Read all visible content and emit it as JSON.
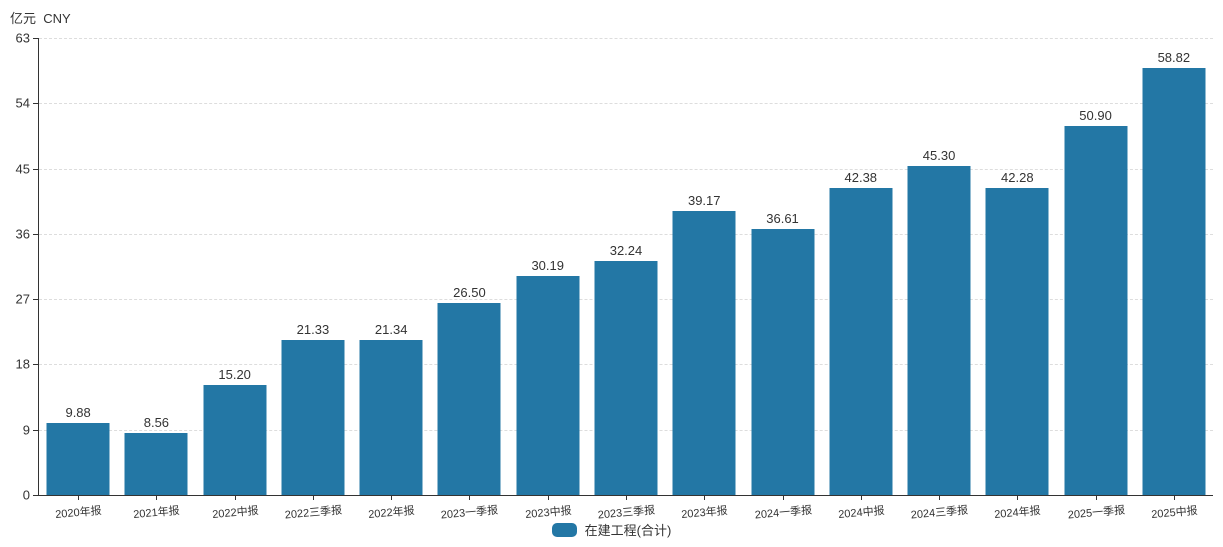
{
  "page": {
    "background": "#ffffff"
  },
  "chart_data": {
    "type": "bar",
    "title": "",
    "unit_label": "亿元  CNY",
    "xlabel": "",
    "ylabel": "亿元 CNY",
    "categories": [
      "2020年报",
      "2021年报",
      "2022中报",
      "2022三季报",
      "2022年报",
      "2023一季报",
      "2023中报",
      "2023三季报",
      "2023年报",
      "2024一季报",
      "2024中报",
      "2024三季报",
      "2024年报",
      "2025一季报",
      "2025中报"
    ],
    "series": [
      {
        "name": "在建工程(合计)",
        "values": [
          9.88,
          8.56,
          15.2,
          21.33,
          21.34,
          26.5,
          30.19,
          32.24,
          39.17,
          36.61,
          42.38,
          45.3,
          42.28,
          50.9,
          58.82
        ]
      }
    ],
    "value_labels": [
      "9.88",
      "8.56",
      "15.20",
      "21.33",
      "21.34",
      "26.50",
      "30.19",
      "32.24",
      "39.17",
      "36.61",
      "42.38",
      "45.30",
      "42.28",
      "50.90",
      "58.82"
    ],
    "ylim": [
      0,
      63
    ],
    "yticks": [
      0,
      9,
      18,
      27,
      36,
      45,
      54,
      63
    ],
    "grid": "dashed-horizontal",
    "legend_position": "bottom-center",
    "legend": {
      "label": "在建工程(合计)"
    },
    "colors": {
      "bar": "#2377a5",
      "grid": "#dddddd",
      "axis": "#333333",
      "text": "#333333"
    }
  }
}
